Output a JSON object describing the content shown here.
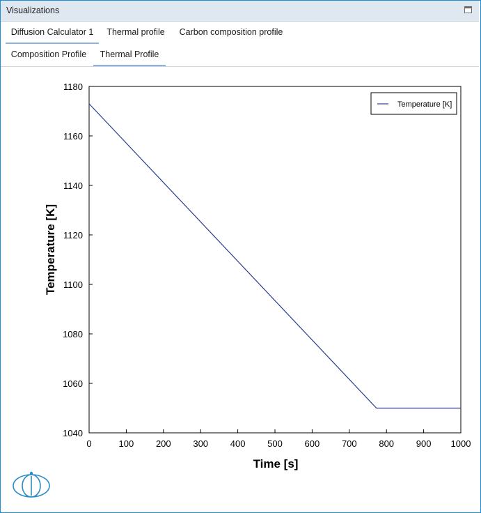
{
  "window": {
    "title": "Visualizations"
  },
  "tabs_primary": [
    {
      "label": "Diffusion Calculator 1",
      "active": true
    },
    {
      "label": "Thermal profile",
      "active": false
    },
    {
      "label": "Carbon composition profile",
      "active": false
    }
  ],
  "tabs_secondary": [
    {
      "label": "Composition Profile",
      "active": false
    },
    {
      "label": "Thermal Profile",
      "active": true
    }
  ],
  "colors": {
    "accent": "#1e8fd6",
    "series": "#2b3b8f",
    "tab_underline": "#8eb2dd"
  },
  "logo": {
    "icon": "thermo-calc-logo-icon"
  },
  "chart_data": {
    "type": "line",
    "title": "",
    "xlabel": "Time [s]",
    "ylabel": "Temperature [K]",
    "xlim": [
      0,
      1000
    ],
    "ylim": [
      1040,
      1180
    ],
    "xticks": [
      0,
      100,
      200,
      300,
      400,
      500,
      600,
      700,
      800,
      900,
      1000
    ],
    "yticks": [
      1040,
      1060,
      1080,
      1100,
      1120,
      1140,
      1160,
      1180
    ],
    "grid": false,
    "legend_position": "top-right",
    "series": [
      {
        "name": "Temperature [K]",
        "x": [
          0,
          773,
          1000
        ],
        "y": [
          1173,
          1050,
          1050
        ]
      }
    ]
  }
}
